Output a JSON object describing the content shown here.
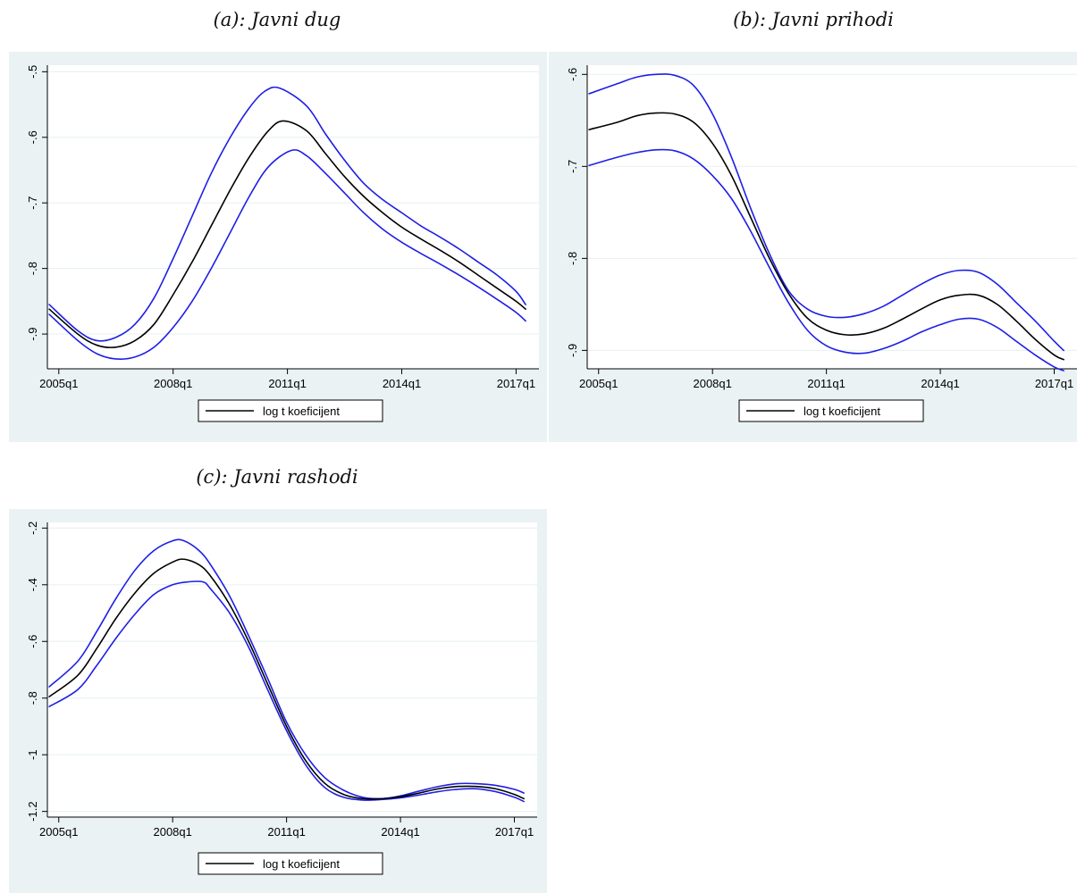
{
  "colors": {
    "panel_bg": "#EAF2F3",
    "plot_bg": "#FFFFFF",
    "grid": "#EAF2F3",
    "axis": "#000000",
    "main_line": "#000000",
    "band_line": "#1E1EE6"
  },
  "chart_data": [
    {
      "type": "line",
      "title": "(a): Javni dug",
      "xlabel": "",
      "ylabel": "",
      "x_tick_labels": [
        "2005q1",
        "2008q1",
        "2011q1",
        "2014q1",
        "2017q1"
      ],
      "x_tick_values": [
        2005.0,
        2008.0,
        2011.0,
        2014.0,
        2017.0
      ],
      "y_tick_labels": [
        "-.5",
        "-.6",
        "-.7",
        "-.8",
        "-.9"
      ],
      "y_tick_values": [
        -0.5,
        -0.6,
        -0.7,
        -0.8,
        -0.9
      ],
      "xlim": [
        2004.7,
        2017.6
      ],
      "ylim": [
        -0.953,
        -0.49
      ],
      "grid": true,
      "legend_position": "bottom",
      "legend": [
        "log t koeficijent"
      ],
      "series": [
        {
          "name": "log t koeficijent",
          "role": "main",
          "x": [
            2004.75,
            2005.5,
            2006.0,
            2006.5,
            2007.0,
            2007.5,
            2008.0,
            2008.5,
            2009.0,
            2009.5,
            2010.0,
            2010.5,
            2010.9,
            2011.5,
            2012.0,
            2012.5,
            2013.0,
            2013.5,
            2014.0,
            2014.5,
            2015.0,
            2015.5,
            2016.0,
            2016.5,
            2017.0,
            2017.25
          ],
          "y": [
            -0.862,
            -0.9,
            -0.917,
            -0.92,
            -0.91,
            -0.885,
            -0.84,
            -0.79,
            -0.735,
            -0.68,
            -0.63,
            -0.59,
            -0.575,
            -0.59,
            -0.625,
            -0.66,
            -0.69,
            -0.715,
            -0.737,
            -0.755,
            -0.772,
            -0.79,
            -0.81,
            -0.83,
            -0.85,
            -0.862
          ]
        },
        {
          "name": "",
          "role": "band",
          "x": [
            2004.75,
            2005.5,
            2006.0,
            2006.5,
            2007.0,
            2007.5,
            2008.0,
            2008.5,
            2009.0,
            2009.5,
            2010.0,
            2010.4,
            2010.8,
            2011.5,
            2012.0,
            2012.5,
            2013.0,
            2013.5,
            2014.0,
            2014.5,
            2015.0,
            2015.5,
            2016.0,
            2016.5,
            2017.0,
            2017.25
          ],
          "y": [
            -0.855,
            -0.895,
            -0.91,
            -0.905,
            -0.885,
            -0.845,
            -0.785,
            -0.72,
            -0.655,
            -0.6,
            -0.555,
            -0.53,
            -0.525,
            -0.552,
            -0.595,
            -0.635,
            -0.67,
            -0.695,
            -0.715,
            -0.735,
            -0.752,
            -0.77,
            -0.79,
            -0.81,
            -0.835,
            -0.855
          ]
        },
        {
          "name": "",
          "role": "band",
          "x": [
            2004.75,
            2005.5,
            2006.0,
            2006.5,
            2007.0,
            2007.5,
            2008.0,
            2008.5,
            2009.0,
            2009.5,
            2010.0,
            2010.5,
            2011.1,
            2011.5,
            2012.0,
            2012.5,
            2013.0,
            2013.5,
            2014.0,
            2014.5,
            2015.0,
            2015.5,
            2016.0,
            2016.5,
            2017.0,
            2017.25
          ],
          "y": [
            -0.87,
            -0.91,
            -0.93,
            -0.938,
            -0.935,
            -0.92,
            -0.89,
            -0.85,
            -0.8,
            -0.745,
            -0.69,
            -0.645,
            -0.62,
            -0.628,
            -0.655,
            -0.685,
            -0.715,
            -0.74,
            -0.76,
            -0.777,
            -0.793,
            -0.81,
            -0.828,
            -0.847,
            -0.867,
            -0.88
          ]
        }
      ]
    },
    {
      "type": "line",
      "title": "(b): Javni prihodi",
      "xlabel": "",
      "ylabel": "",
      "x_tick_labels": [
        "2005q1",
        "2008q1",
        "2011q1",
        "2014q1",
        "2017q1"
      ],
      "x_tick_values": [
        2005.0,
        2008.0,
        2011.0,
        2014.0,
        2017.0
      ],
      "y_tick_labels": [
        "-.6",
        "-.7",
        "-.8",
        "-.9"
      ],
      "y_tick_values": [
        -0.6,
        -0.7,
        -0.8,
        -0.9
      ],
      "xlim": [
        2004.7,
        2017.6
      ],
      "ylim": [
        -0.92,
        -0.59
      ],
      "grid": true,
      "legend_position": "bottom",
      "legend": [
        "log t koeficijent"
      ],
      "series": [
        {
          "name": "log t koeficijent",
          "role": "main",
          "x": [
            2004.75,
            2005.5,
            2006.0,
            2006.5,
            2007.0,
            2007.5,
            2008.0,
            2008.5,
            2009.0,
            2009.5,
            2010.0,
            2010.5,
            2011.0,
            2011.5,
            2012.0,
            2012.5,
            2013.0,
            2013.5,
            2014.0,
            2014.5,
            2015.0,
            2015.5,
            2016.0,
            2016.5,
            2017.0,
            2017.25
          ],
          "y": [
            -0.66,
            -0.652,
            -0.645,
            -0.642,
            -0.643,
            -0.652,
            -0.675,
            -0.71,
            -0.755,
            -0.8,
            -0.838,
            -0.865,
            -0.878,
            -0.883,
            -0.882,
            -0.876,
            -0.866,
            -0.855,
            -0.845,
            -0.84,
            -0.84,
            -0.85,
            -0.868,
            -0.888,
            -0.905,
            -0.91
          ]
        },
        {
          "name": "",
          "role": "band",
          "x": [
            2004.75,
            2005.5,
            2006.0,
            2006.5,
            2007.0,
            2007.5,
            2008.0,
            2008.5,
            2009.0,
            2009.5,
            2010.0,
            2010.5,
            2011.0,
            2011.5,
            2012.0,
            2012.5,
            2013.0,
            2013.5,
            2014.0,
            2014.5,
            2015.0,
            2015.5,
            2016.0,
            2016.5,
            2017.0,
            2017.25
          ],
          "y": [
            -0.621,
            -0.61,
            -0.603,
            -0.6,
            -0.601,
            -0.612,
            -0.643,
            -0.69,
            -0.745,
            -0.795,
            -0.835,
            -0.855,
            -0.863,
            -0.864,
            -0.86,
            -0.852,
            -0.84,
            -0.828,
            -0.818,
            -0.813,
            -0.815,
            -0.828,
            -0.848,
            -0.868,
            -0.89,
            -0.9
          ]
        },
        {
          "name": "",
          "role": "band",
          "x": [
            2004.75,
            2005.5,
            2006.0,
            2006.5,
            2007.0,
            2007.5,
            2008.0,
            2008.5,
            2009.0,
            2009.5,
            2010.0,
            2010.5,
            2011.0,
            2011.5,
            2012.0,
            2012.5,
            2013.0,
            2013.5,
            2014.0,
            2014.5,
            2015.0,
            2015.5,
            2016.0,
            2016.5,
            2017.0,
            2017.25
          ],
          "y": [
            -0.699,
            -0.69,
            -0.685,
            -0.682,
            -0.683,
            -0.692,
            -0.71,
            -0.735,
            -0.77,
            -0.81,
            -0.848,
            -0.878,
            -0.895,
            -0.902,
            -0.903,
            -0.898,
            -0.89,
            -0.88,
            -0.872,
            -0.866,
            -0.866,
            -0.875,
            -0.89,
            -0.905,
            -0.918,
            -0.922
          ]
        }
      ]
    },
    {
      "type": "line",
      "title": "(c): Javni rashodi",
      "xlabel": "",
      "ylabel": "",
      "x_tick_labels": [
        "2005q1",
        "2008q1",
        "2011q1",
        "2014q1",
        "2017q1"
      ],
      "x_tick_values": [
        2005.0,
        2008.0,
        2011.0,
        2014.0,
        2017.0
      ],
      "y_tick_labels": [
        "-.2",
        "-.4",
        "-.6",
        "-.8",
        "-1",
        "-1.2"
      ],
      "y_tick_values": [
        -0.2,
        -0.4,
        -0.6,
        -0.8,
        -1.0,
        -1.2
      ],
      "xlim": [
        2004.7,
        2017.6
      ],
      "ylim": [
        -1.22,
        -0.18
      ],
      "grid": true,
      "legend_position": "bottom",
      "legend": [
        "log t koeficijent"
      ],
      "series": [
        {
          "name": "log t koeficijent",
          "role": "main",
          "x": [
            2004.75,
            2005.5,
            2006.0,
            2006.5,
            2007.0,
            2007.5,
            2008.0,
            2008.3,
            2008.7,
            2009.0,
            2009.5,
            2010.0,
            2010.5,
            2011.0,
            2011.5,
            2012.0,
            2012.5,
            2013.0,
            2013.5,
            2014.0,
            2014.5,
            2015.0,
            2015.5,
            2016.0,
            2016.5,
            2017.0,
            2017.25
          ],
          "y": [
            -0.795,
            -0.72,
            -0.625,
            -0.52,
            -0.43,
            -0.36,
            -0.32,
            -0.31,
            -0.33,
            -0.37,
            -0.47,
            -0.6,
            -0.75,
            -0.9,
            -1.02,
            -1.1,
            -1.14,
            -1.155,
            -1.155,
            -1.148,
            -1.135,
            -1.12,
            -1.112,
            -1.112,
            -1.12,
            -1.14,
            -1.155
          ]
        },
        {
          "name": "",
          "role": "band",
          "x": [
            2004.75,
            2005.5,
            2006.0,
            2006.5,
            2007.0,
            2007.5,
            2008.0,
            2008.3,
            2008.7,
            2009.0,
            2009.5,
            2010.0,
            2010.5,
            2011.0,
            2011.5,
            2012.0,
            2012.5,
            2013.0,
            2013.5,
            2014.0,
            2014.5,
            2015.0,
            2015.5,
            2016.0,
            2016.5,
            2017.0,
            2017.25
          ],
          "y": [
            -0.76,
            -0.67,
            -0.565,
            -0.45,
            -0.35,
            -0.28,
            -0.245,
            -0.245,
            -0.28,
            -0.33,
            -0.44,
            -0.58,
            -0.73,
            -0.885,
            -1.0,
            -1.08,
            -1.125,
            -1.15,
            -1.155,
            -1.145,
            -1.128,
            -1.112,
            -1.102,
            -1.102,
            -1.108,
            -1.122,
            -1.135
          ]
        },
        {
          "name": "",
          "role": "band",
          "x": [
            2004.75,
            2005.5,
            2006.0,
            2006.5,
            2007.0,
            2007.5,
            2008.0,
            2008.4,
            2008.8,
            2009.0,
            2009.5,
            2010.0,
            2010.5,
            2011.0,
            2011.5,
            2012.0,
            2012.5,
            2013.0,
            2013.5,
            2014.0,
            2014.5,
            2015.0,
            2015.5,
            2016.0,
            2016.5,
            2017.0,
            2017.25
          ],
          "y": [
            -0.83,
            -0.77,
            -0.685,
            -0.59,
            -0.505,
            -0.435,
            -0.4,
            -0.39,
            -0.39,
            -0.415,
            -0.5,
            -0.62,
            -0.77,
            -0.915,
            -1.035,
            -1.115,
            -1.15,
            -1.16,
            -1.158,
            -1.152,
            -1.142,
            -1.13,
            -1.122,
            -1.12,
            -1.13,
            -1.15,
            -1.165
          ]
        }
      ]
    }
  ]
}
